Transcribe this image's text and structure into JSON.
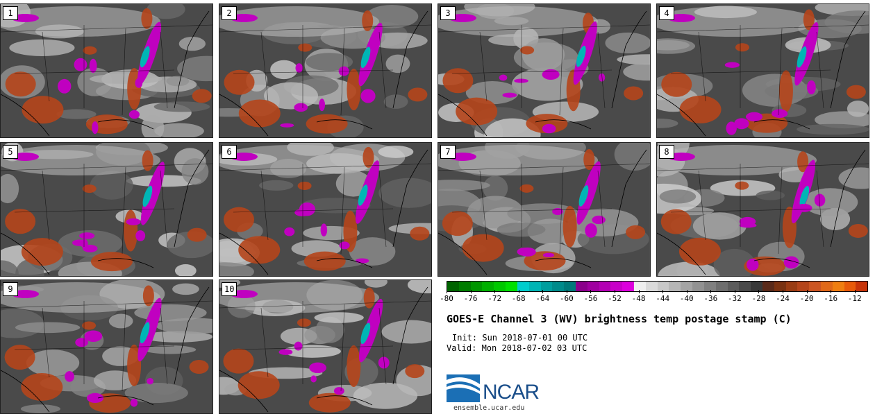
{
  "panel_labels": [
    "1",
    "2",
    "3",
    "4",
    "5",
    "6",
    "7",
    "8",
    "9",
    "10"
  ],
  "colors": {
    "background_gray": "#4a4a4a",
    "border": "#222222",
    "cold_magenta": "#c000c0",
    "cold_cyan": "#00b5b5",
    "warm_orange": "#b5451b"
  },
  "chart_data": {
    "type": "heatmap",
    "title": "GOES-E Channel 3 (WV) brightness temp postage stamp (C)",
    "variable": "brightness temperature",
    "units": "C",
    "init_label": "Init: Sun 2018-07-01 00 UTC",
    "valid_label": "Valid: Mon 2018-07-02 03 UTC",
    "ensemble_members": 10,
    "colorbar": {
      "range": [
        -80,
        -10
      ],
      "interval": 2,
      "tick_labels": [
        "-80",
        "-76",
        "-72",
        "-68",
        "-64",
        "-60",
        "-56",
        "-52",
        "-48",
        "-44",
        "-40",
        "-36",
        "-32",
        "-28",
        "-24",
        "-20",
        "-16",
        "-12"
      ],
      "colors": [
        "#006400",
        "#007d00",
        "#009600",
        "#00b000",
        "#00c800",
        "#00e000",
        "#00cdcd",
        "#00b5b5",
        "#009e9e",
        "#008b8b",
        "#007a7a",
        "#8b008b",
        "#a000a0",
        "#b400b4",
        "#c800c8",
        "#dc00dc",
        "#eeeeee",
        "#dadada",
        "#c8c8c8",
        "#b6b6b6",
        "#a4a4a4",
        "#929292",
        "#808080",
        "#6e6e6e",
        "#5c5c5c",
        "#4a4a4a",
        "#383838",
        "#5a2a1a",
        "#7a3212",
        "#9a3c14",
        "#b5451b",
        "#cc5522",
        "#e06818",
        "#f07e10",
        "#e85a0a",
        "#c8340a"
      ]
    }
  },
  "logo": {
    "text": "NCAR",
    "url": "ensemble.ucar.edu"
  }
}
